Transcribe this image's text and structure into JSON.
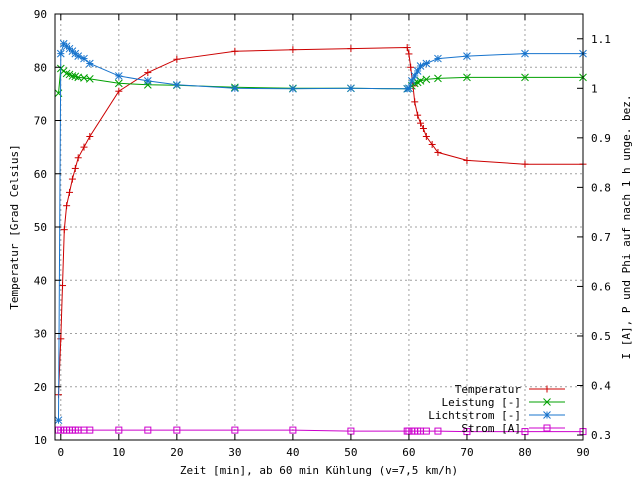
{
  "chart_data": {
    "type": "line",
    "xlabel": "Zeit [min], ab 60 min Kühlung (v=7,5 km/h)",
    "ylabel": "Temperatur [Grad Celsius]",
    "y2label": "I [A], P und Phi auf nach 1 h unge. bez.",
    "xlim": [
      -1,
      90
    ],
    "ylim": [
      10,
      90
    ],
    "y2lim": [
      0.29,
      1.15
    ],
    "x_ticks": [
      0,
      10,
      20,
      30,
      40,
      50,
      60,
      70,
      80,
      90
    ],
    "y_ticks": [
      10,
      20,
      30,
      40,
      50,
      60,
      70,
      80,
      90
    ],
    "y2_ticks": [
      0.3,
      0.4,
      0.5,
      0.6,
      0.7,
      0.8,
      0.9,
      1,
      1.1
    ],
    "grid": true,
    "legend_position": "bottom-right",
    "series": [
      {
        "name": "Temperatur",
        "axis": "y",
        "color": "#cc0000",
        "marker": "plus",
        "x": [
          -0.4,
          0,
          0.3,
          0.6,
          1,
          1.5,
          2,
          2.5,
          3,
          4,
          5,
          10,
          15,
          20,
          30,
          40,
          50,
          59.7,
          60,
          60.3,
          60.7,
          61,
          61.5,
          62,
          62.5,
          63,
          64,
          65,
          70,
          80,
          90
        ],
        "y": [
          18.5,
          29,
          39,
          49.5,
          54,
          56.5,
          59,
          61,
          63,
          65,
          67,
          75.5,
          79,
          81.5,
          83,
          83.3,
          83.5,
          83.7,
          82.5,
          80,
          76.5,
          73.5,
          71,
          69.5,
          68.5,
          67,
          65.5,
          64,
          62.5,
          61.8,
          61.8
        ]
      },
      {
        "name": "Leistung [-]",
        "axis": "y2",
        "color": "#00a000",
        "marker": "cross",
        "x": [
          -0.4,
          0,
          0.5,
          1,
          1.5,
          2,
          2.5,
          3,
          4,
          5,
          10,
          15,
          20,
          30,
          40,
          50,
          59.7,
          60,
          60.5,
          61,
          61.5,
          62,
          63,
          65,
          70,
          80,
          90
        ],
        "y": [
          0.99,
          1.04,
          1.035,
          1.03,
          1.028,
          1.025,
          1.024,
          1.022,
          1.021,
          1.019,
          1.01,
          1.007,
          1.006,
          1.002,
          1.0,
          1.0,
          0.999,
          1.0,
          1.005,
          1.01,
          1.012,
          1.015,
          1.018,
          1.02,
          1.022,
          1.022,
          1.022
        ]
      },
      {
        "name": "Lichtstrom [-]",
        "axis": "y2",
        "color": "#1874cd",
        "marker": "star",
        "x": [
          -0.4,
          0,
          0.5,
          1,
          1.5,
          2,
          2.5,
          3,
          4,
          5,
          10,
          15,
          20,
          30,
          40,
          50,
          59.7,
          60,
          60.5,
          61,
          61.5,
          62,
          63,
          65,
          70,
          80,
          90
        ],
        "y": [
          0.33,
          1.07,
          1.09,
          1.085,
          1.08,
          1.075,
          1.07,
          1.065,
          1.06,
          1.05,
          1.025,
          1.015,
          1.007,
          1.0,
          0.999,
          1.0,
          0.999,
          1.0,
          1.015,
          1.025,
          1.035,
          1.045,
          1.05,
          1.06,
          1.065,
          1.07,
          1.07
        ]
      },
      {
        "name": "Strom [A]",
        "axis": "y2",
        "color": "#cc00cc",
        "marker": "square",
        "x": [
          -0.4,
          0,
          0.5,
          1,
          1.5,
          2,
          2.5,
          3,
          4,
          5,
          10,
          15,
          20,
          30,
          40,
          50,
          59.7,
          60,
          60.5,
          61,
          61.5,
          62,
          63,
          65,
          70,
          80,
          90
        ],
        "y": [
          0.31,
          0.31,
          0.31,
          0.31,
          0.31,
          0.31,
          0.31,
          0.31,
          0.31,
          0.31,
          0.31,
          0.31,
          0.31,
          0.31,
          0.31,
          0.308,
          0.308,
          0.308,
          0.308,
          0.308,
          0.308,
          0.308,
          0.308,
          0.308,
          0.307,
          0.307,
          0.307
        ]
      }
    ]
  }
}
